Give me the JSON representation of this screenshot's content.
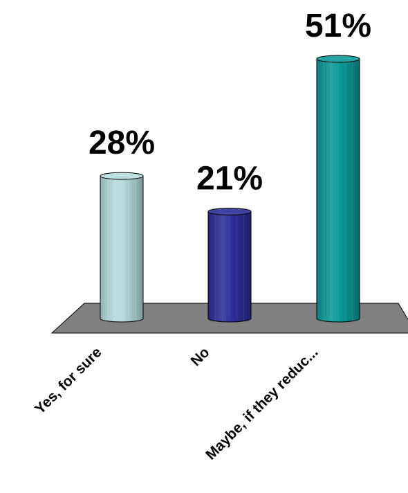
{
  "chart_data": {
    "type": "bar",
    "categories": [
      "Yes, for sure",
      "No",
      "Maybe, if they reduc..."
    ],
    "values": [
      28,
      21,
      51
    ],
    "value_labels": [
      "28%",
      "21%",
      "51%"
    ],
    "unit": "%",
    "colors": [
      "#b4dcdc",
      "#2e2e99",
      "#0a9a98"
    ],
    "floor_color": "#808080",
    "title": "",
    "xlabel": "",
    "ylabel": "",
    "ylim": [
      0,
      51
    ],
    "grid": false,
    "legend": "none"
  }
}
